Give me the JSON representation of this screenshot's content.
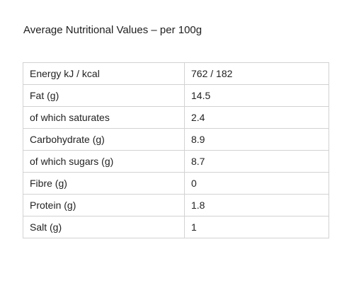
{
  "heading": "Average Nutritional Values – per 100g",
  "rows": [
    {
      "label": "Energy kJ / kcal",
      "value": "762 / 182"
    },
    {
      "label": "Fat (g)",
      "value": "14.5"
    },
    {
      "label": "of which saturates",
      "value": "2.4"
    },
    {
      "label": "Carbohydrate (g)",
      "value": "8.9"
    },
    {
      "label": "of which sugars (g)",
      "value": "8.7"
    },
    {
      "label": "Fibre (g)",
      "value": "0"
    },
    {
      "label": "Protein (g)",
      "value": "1.8"
    },
    {
      "label": "Salt (g)",
      "value": "1"
    }
  ]
}
